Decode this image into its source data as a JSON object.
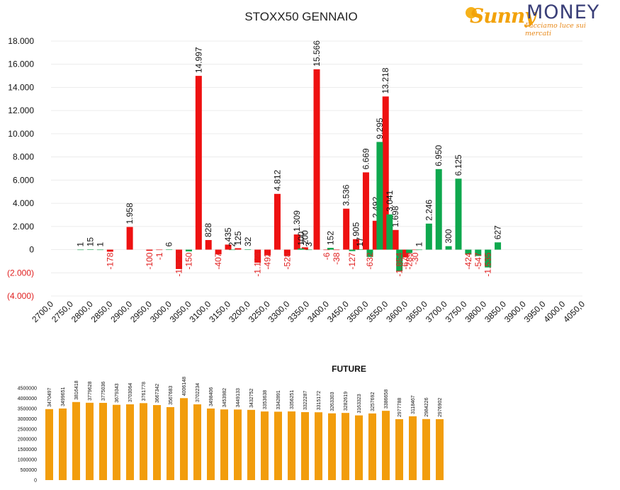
{
  "header": {
    "title": "STOXX50 GENNAIO",
    "logo_sunny": "Sunny",
    "logo_money": "MONEY",
    "logo_tagline": "Facciamo luce sui mercati"
  },
  "colors": {
    "call": "#ee1111",
    "put": "#0fa84e",
    "future": "#f29d0c",
    "negative_label": "#e02020"
  },
  "chart_data": [
    {
      "type": "bar",
      "title": "STOXX50 GENNAIO",
      "ylim": [
        -4000,
        18000
      ],
      "y_ticks": [
        "18.000",
        "16.000",
        "14.000",
        "12.000",
        "10.000",
        "8.000",
        "6.000",
        "4.000",
        "2.000",
        "0",
        "(2.000)",
        "(4.000)"
      ],
      "x_ticks": [
        "2700,0",
        "2750,0",
        "2800,0",
        "2850,0",
        "2900,0",
        "2950,0",
        "3000,0",
        "3050,0",
        "3100,0",
        "3150,0",
        "3200,0",
        "3250,0",
        "3300,0",
        "3350,0",
        "3400,0",
        "3450,0",
        "3500,0",
        "3550,0",
        "3600,0",
        "3650,0",
        "3700,0",
        "3750,0",
        "3800,0",
        "3850,0",
        "3900,0",
        "3950,0",
        "4000,0",
        "4050,0"
      ],
      "grid": true,
      "series": [
        {
          "color": "call",
          "points": [
            {
              "x": 2850,
              "y": -178,
              "label": "-178"
            },
            {
              "x": 2900,
              "y": 1958,
              "label": "1.958"
            },
            {
              "x": 2950,
              "y": -100,
              "label": "-100"
            },
            {
              "x": 2975,
              "y": -1,
              "label": "-1"
            },
            {
              "x": 3025,
              "y": -1674,
              "label": "-1.674"
            },
            {
              "x": 3075,
              "y": 14997,
              "label": "14.997"
            },
            {
              "x": 3100,
              "y": 828,
              "label": "828"
            },
            {
              "x": 3125,
              "y": -407,
              "label": "-407"
            },
            {
              "x": 3150,
              "y": 435,
              "label": "435"
            },
            {
              "x": 3175,
              "y": 125,
              "label": "125"
            },
            {
              "x": 3225,
              "y": -1124,
              "label": "-1.124"
            },
            {
              "x": 3250,
              "y": -492,
              "label": "-492"
            },
            {
              "x": 3275,
              "y": 4812,
              "label": "4.812"
            },
            {
              "x": 3300,
              "y": -528,
              "label": "-528"
            },
            {
              "x": 3325,
              "y": 1309,
              "label": "1.309"
            },
            {
              "x": 3345,
              "y": 200,
              "label": "200"
            },
            {
              "x": 3375,
              "y": 15566,
              "label": "15.566"
            },
            {
              "x": 3400,
              "y": -6,
              "label": "-6"
            },
            {
              "x": 3425,
              "y": -38,
              "label": "-38"
            },
            {
              "x": 3450,
              "y": 3536,
              "label": "3.536"
            },
            {
              "x": 3475,
              "y": 905,
              "label": "905"
            },
            {
              "x": 3500,
              "y": 6669,
              "label": "6.669"
            },
            {
              "x": 3525,
              "y": 2492,
              "label": "2.492"
            },
            {
              "x": 3550,
              "y": 13218,
              "label": "13.218"
            },
            {
              "x": 3575,
              "y": 1698,
              "label": "1.698"
            },
            {
              "x": 3600,
              "y": -674,
              "label": "-674"
            },
            {
              "x": 3625,
              "y": -30,
              "label": "-30"
            }
          ]
        },
        {
          "color": "put",
          "points": [
            {
              "x": 2775,
              "y": 1,
              "label": "1"
            },
            {
              "x": 2800,
              "y": 15,
              "label": "15"
            },
            {
              "x": 2825,
              "y": 1,
              "label": "1"
            },
            {
              "x": 3000,
              "y": 6,
              "label": "6"
            },
            {
              "x": 3050,
              "y": -150,
              "label": "-150"
            },
            {
              "x": 3160,
              "y": 2,
              "label": "2"
            },
            {
              "x": 3200,
              "y": 32,
              "label": "32"
            },
            {
              "x": 3335,
              "y": 100,
              "label": "100"
            },
            {
              "x": 3355,
              "y": 3,
              "label": "3"
            },
            {
              "x": 3410,
              "y": 152,
              "label": "152"
            },
            {
              "x": 3465,
              "y": -127,
              "label": "-127"
            },
            {
              "x": 3485,
              "y": 17,
              "label": "17"
            },
            {
              "x": 3510,
              "y": -632,
              "label": "-632"
            },
            {
              "x": 3535,
              "y": 9295,
              "label": "9.295"
            },
            {
              "x": 3560,
              "y": 3041,
              "label": "3.041"
            },
            {
              "x": 3585,
              "y": -1854,
              "label": "-1.854"
            },
            {
              "x": 3610,
              "y": -289,
              "label": "-289"
            },
            {
              "x": 3635,
              "y": 1,
              "label": "1"
            },
            {
              "x": 3660,
              "y": 2246,
              "label": "2.246"
            },
            {
              "x": 3685,
              "y": 6950,
              "label": "6.950"
            },
            {
              "x": 3710,
              "y": 300,
              "label": "300"
            },
            {
              "x": 3735,
              "y": 6125,
              "label": "6.125"
            },
            {
              "x": 3760,
              "y": -424,
              "label": "-424"
            },
            {
              "x": 3785,
              "y": -547,
              "label": "-547"
            },
            {
              "x": 3810,
              "y": -1535,
              "label": "-1.535"
            },
            {
              "x": 3835,
              "y": 627,
              "label": "627"
            }
          ]
        }
      ]
    },
    {
      "type": "bar",
      "title": "FUTURE",
      "ylim": [
        0,
        4500000
      ],
      "y_ticks": [
        "4500000",
        "4000000",
        "3500000",
        "3000000",
        "2500000",
        "2000000",
        "1500000",
        "1000000",
        "500000",
        "0"
      ],
      "values": [
        3470497,
        3499651,
        3816418,
        3779628,
        3775036,
        3679343,
        3703064,
        3761778,
        3667342,
        3567683,
        4006148,
        3702234,
        3498406,
        3453982,
        3449133,
        3432752,
        3353638,
        3342891,
        3356251,
        3322287,
        3315172,
        3263303,
        3282619,
        3163323,
        3257692,
        3386658,
        2977788,
        3118467,
        2984226,
        2976902
      ]
    }
  ]
}
